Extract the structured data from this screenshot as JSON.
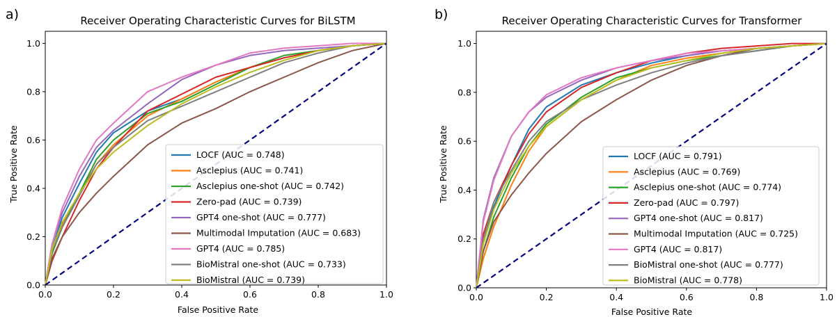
{
  "chart_data": [
    {
      "type": "line",
      "panel_label": "a)",
      "title": "Receiver Operating Characteristic Curves for BiLSTM",
      "xlabel": "False Positive Rate",
      "ylabel": "True Positive Rate",
      "xlim": [
        0.0,
        1.0
      ],
      "ylim": [
        0.0,
        1.05
      ],
      "xticks": [
        "0.0",
        "0.2",
        "0.4",
        "0.6",
        "0.8",
        "1.0"
      ],
      "yticks": [
        "0.0",
        "0.2",
        "0.4",
        "0.6",
        "0.8",
        "1.0"
      ],
      "legend_position": "lower-right",
      "chance_line": {
        "x": [
          0,
          1
        ],
        "y": [
          0,
          1
        ],
        "color": "#000080",
        "style": "dashed"
      },
      "series": [
        {
          "name": "LOCF (AUC = 0.748)",
          "color": "#1f77b4",
          "x": [
            0,
            0.02,
            0.05,
            0.1,
            0.15,
            0.2,
            0.3,
            0.4,
            0.5,
            0.6,
            0.7,
            0.8,
            0.9,
            1.0
          ],
          "y": [
            0,
            0.15,
            0.28,
            0.42,
            0.55,
            0.63,
            0.72,
            0.77,
            0.84,
            0.9,
            0.94,
            0.97,
            0.99,
            1.0
          ]
        },
        {
          "name": "Asclepius (AUC = 0.741)",
          "color": "#ff7f0e",
          "x": [
            0,
            0.02,
            0.05,
            0.1,
            0.15,
            0.2,
            0.3,
            0.4,
            0.5,
            0.6,
            0.7,
            0.8,
            0.9,
            1.0
          ],
          "y": [
            0,
            0.14,
            0.25,
            0.38,
            0.5,
            0.58,
            0.7,
            0.77,
            0.84,
            0.9,
            0.94,
            0.97,
            0.99,
            1.0
          ]
        },
        {
          "name": "Asclepius one-shot (AUC = 0.742)",
          "color": "#2ca02c",
          "x": [
            0,
            0.02,
            0.05,
            0.1,
            0.15,
            0.2,
            0.3,
            0.4,
            0.5,
            0.6,
            0.7,
            0.8,
            0.9,
            1.0
          ],
          "y": [
            0,
            0.13,
            0.24,
            0.38,
            0.52,
            0.6,
            0.71,
            0.76,
            0.83,
            0.9,
            0.95,
            0.97,
            0.99,
            1.0
          ]
        },
        {
          "name": "Zero-pad (AUC = 0.739)",
          "color": "#d62728",
          "x": [
            0,
            0.02,
            0.05,
            0.1,
            0.15,
            0.2,
            0.3,
            0.4,
            0.5,
            0.6,
            0.7,
            0.8,
            0.9,
            1.0
          ],
          "y": [
            0,
            0.1,
            0.2,
            0.35,
            0.48,
            0.57,
            0.72,
            0.79,
            0.86,
            0.9,
            0.94,
            0.97,
            0.99,
            1.0
          ]
        },
        {
          "name": "GPT4 one-shot (AUC = 0.777)",
          "color": "#9467bd",
          "x": [
            0,
            0.02,
            0.05,
            0.1,
            0.15,
            0.2,
            0.3,
            0.4,
            0.5,
            0.6,
            0.7,
            0.8,
            0.9,
            1.0
          ],
          "y": [
            0,
            0.17,
            0.3,
            0.45,
            0.57,
            0.64,
            0.75,
            0.85,
            0.91,
            0.95,
            0.97,
            0.98,
            0.99,
            1.0
          ]
        },
        {
          "name": "Multimodal Imputation (AUC = 0.683)",
          "color": "#8c564b",
          "x": [
            0,
            0.02,
            0.05,
            0.1,
            0.15,
            0.2,
            0.3,
            0.4,
            0.5,
            0.6,
            0.7,
            0.8,
            0.9,
            1.0
          ],
          "y": [
            0,
            0.11,
            0.2,
            0.3,
            0.38,
            0.45,
            0.58,
            0.67,
            0.73,
            0.8,
            0.86,
            0.92,
            0.97,
            1.0
          ]
        },
        {
          "name": "GPT4 (AUC = 0.785)",
          "color": "#e377c2",
          "x": [
            0,
            0.02,
            0.05,
            0.1,
            0.15,
            0.2,
            0.3,
            0.4,
            0.5,
            0.6,
            0.7,
            0.8,
            0.9,
            1.0
          ],
          "y": [
            0,
            0.17,
            0.32,
            0.48,
            0.6,
            0.67,
            0.8,
            0.86,
            0.91,
            0.96,
            0.98,
            0.99,
            1.0,
            1.0
          ]
        },
        {
          "name": "BioMistral one-shot (AUC = 0.733)",
          "color": "#7f7f7f",
          "x": [
            0,
            0.02,
            0.05,
            0.1,
            0.15,
            0.2,
            0.3,
            0.4,
            0.5,
            0.6,
            0.7,
            0.8,
            0.9,
            1.0
          ],
          "y": [
            0,
            0.14,
            0.24,
            0.37,
            0.5,
            0.57,
            0.68,
            0.74,
            0.8,
            0.86,
            0.92,
            0.96,
            0.99,
            1.0
          ]
        },
        {
          "name": "BioMistral (AUC = 0.739)",
          "color": "#bcbd22",
          "x": [
            0,
            0.02,
            0.05,
            0.1,
            0.15,
            0.2,
            0.3,
            0.4,
            0.5,
            0.6,
            0.7,
            0.8,
            0.9,
            1.0
          ],
          "y": [
            0,
            0.15,
            0.26,
            0.38,
            0.48,
            0.55,
            0.66,
            0.75,
            0.82,
            0.88,
            0.93,
            0.97,
            0.99,
            1.0
          ]
        }
      ]
    },
    {
      "type": "line",
      "panel_label": "b)",
      "title": "Receiver Operating Characteristic Curves for Transformer",
      "xlabel": "False Positive Rate",
      "ylabel": "True Positive Rate",
      "xlim": [
        0.0,
        1.0
      ],
      "ylim": [
        0.0,
        1.05
      ],
      "xticks": [
        "0.0",
        "0.2",
        "0.4",
        "0.6",
        "0.8",
        "1.0"
      ],
      "yticks": [
        "0.0",
        "0.2",
        "0.4",
        "0.6",
        "0.8",
        "1.0"
      ],
      "legend_position": "lower-right",
      "chance_line": {
        "x": [
          0,
          1
        ],
        "y": [
          0,
          1
        ],
        "color": "#000080",
        "style": "dashed"
      },
      "series": [
        {
          "name": "LOCF (AUC = 0.791)",
          "color": "#1f77b4",
          "x": [
            0,
            0.02,
            0.05,
            0.1,
            0.15,
            0.2,
            0.3,
            0.4,
            0.5,
            0.6,
            0.7,
            0.8,
            0.9,
            1.0
          ],
          "y": [
            0,
            0.2,
            0.33,
            0.5,
            0.65,
            0.74,
            0.83,
            0.88,
            0.92,
            0.95,
            0.97,
            0.98,
            0.99,
            1.0
          ]
        },
        {
          "name": "Asclepius (AUC = 0.769)",
          "color": "#ff7f0e",
          "x": [
            0,
            0.02,
            0.05,
            0.1,
            0.15,
            0.2,
            0.3,
            0.4,
            0.5,
            0.6,
            0.7,
            0.8,
            0.9,
            1.0
          ],
          "y": [
            0,
            0.12,
            0.25,
            0.42,
            0.56,
            0.66,
            0.77,
            0.85,
            0.91,
            0.94,
            0.96,
            0.98,
            0.99,
            1.0
          ]
        },
        {
          "name": "Asclepius one-shot (AUC = 0.774)",
          "color": "#2ca02c",
          "x": [
            0,
            0.02,
            0.05,
            0.1,
            0.15,
            0.2,
            0.3,
            0.4,
            0.5,
            0.6,
            0.7,
            0.8,
            0.9,
            1.0
          ],
          "y": [
            0,
            0.15,
            0.29,
            0.45,
            0.58,
            0.67,
            0.78,
            0.86,
            0.9,
            0.93,
            0.95,
            0.97,
            0.99,
            1.0
          ]
        },
        {
          "name": "Zero-pad (AUC = 0.797)",
          "color": "#d62728",
          "x": [
            0,
            0.02,
            0.05,
            0.1,
            0.15,
            0.2,
            0.3,
            0.4,
            0.5,
            0.6,
            0.7,
            0.8,
            0.9,
            1.0
          ],
          "y": [
            0,
            0.22,
            0.35,
            0.5,
            0.63,
            0.72,
            0.82,
            0.88,
            0.93,
            0.96,
            0.98,
            0.99,
            1.0,
            1.0
          ]
        },
        {
          "name": "GPT4 one-shot (AUC = 0.817)",
          "color": "#9467bd",
          "x": [
            0,
            0.02,
            0.05,
            0.1,
            0.15,
            0.2,
            0.3,
            0.4,
            0.5,
            0.6,
            0.7,
            0.8,
            0.9,
            1.0
          ],
          "y": [
            0,
            0.28,
            0.45,
            0.62,
            0.72,
            0.78,
            0.85,
            0.9,
            0.93,
            0.95,
            0.97,
            0.98,
            0.99,
            1.0
          ]
        },
        {
          "name": "Multimodal Imputation (AUC = 0.725)",
          "color": "#8c564b",
          "x": [
            0,
            0.02,
            0.05,
            0.1,
            0.15,
            0.2,
            0.3,
            0.4,
            0.5,
            0.6,
            0.7,
            0.8,
            0.9,
            1.0
          ],
          "y": [
            0,
            0.15,
            0.27,
            0.38,
            0.47,
            0.55,
            0.68,
            0.77,
            0.85,
            0.91,
            0.95,
            0.98,
            0.99,
            1.0
          ]
        },
        {
          "name": "GPT4 (AUC = 0.817)",
          "color": "#e377c2",
          "x": [
            0,
            0.02,
            0.05,
            0.1,
            0.15,
            0.2,
            0.3,
            0.4,
            0.5,
            0.6,
            0.7,
            0.8,
            0.9,
            1.0
          ],
          "y": [
            0,
            0.27,
            0.44,
            0.62,
            0.72,
            0.79,
            0.86,
            0.9,
            0.93,
            0.96,
            0.97,
            0.98,
            0.99,
            1.0
          ]
        },
        {
          "name": "BioMistral one-shot (AUC = 0.777)",
          "color": "#7f7f7f",
          "x": [
            0,
            0.02,
            0.05,
            0.1,
            0.15,
            0.2,
            0.3,
            0.4,
            0.5,
            0.6,
            0.7,
            0.8,
            0.9,
            1.0
          ],
          "y": [
            0,
            0.2,
            0.35,
            0.48,
            0.6,
            0.68,
            0.77,
            0.83,
            0.88,
            0.92,
            0.95,
            0.97,
            0.99,
            1.0
          ]
        },
        {
          "name": "BioMistral (AUC = 0.778)",
          "color": "#bcbd22",
          "x": [
            0,
            0.02,
            0.05,
            0.1,
            0.15,
            0.2,
            0.3,
            0.4,
            0.5,
            0.6,
            0.7,
            0.8,
            0.9,
            1.0
          ],
          "y": [
            0,
            0.18,
            0.32,
            0.47,
            0.58,
            0.66,
            0.77,
            0.85,
            0.9,
            0.93,
            0.96,
            0.98,
            0.99,
            1.0
          ]
        }
      ]
    }
  ]
}
